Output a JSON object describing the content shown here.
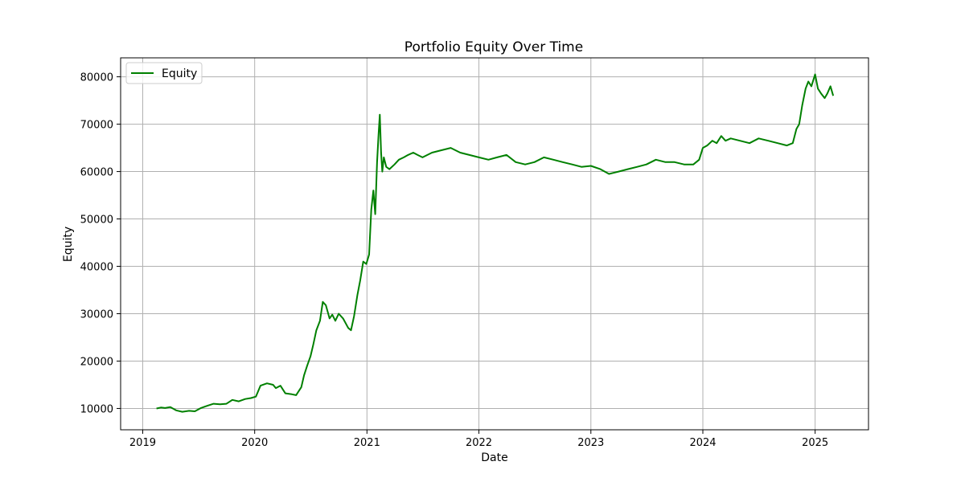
{
  "chart_data": {
    "type": "line",
    "title": "Portfolio Equity Over Time",
    "xlabel": "Date",
    "ylabel": "Equity",
    "x_ticks": [
      "2019",
      "2020",
      "2021",
      "2022",
      "2023",
      "2024",
      "2025"
    ],
    "y_ticks": [
      10000,
      20000,
      30000,
      40000,
      50000,
      60000,
      70000,
      80000
    ],
    "xlim": [
      "2018-10-21",
      "2025-06-24"
    ],
    "ylim": [
      5500,
      84000
    ],
    "grid": true,
    "legend_position": "top-left",
    "series": [
      {
        "name": "Equity",
        "color": "#008000",
        "x": [
          "2019-02-15",
          "2019-03-01",
          "2019-03-15",
          "2019-04-01",
          "2019-04-20",
          "2019-05-10",
          "2019-06-01",
          "2019-06-20",
          "2019-07-10",
          "2019-08-01",
          "2019-08-20",
          "2019-09-10",
          "2019-10-01",
          "2019-10-20",
          "2019-11-10",
          "2019-12-01",
          "2019-12-20",
          "2020-01-05",
          "2020-01-20",
          "2020-02-10",
          "2020-03-01",
          "2020-03-10",
          "2020-03-25",
          "2020-04-10",
          "2020-05-01",
          "2020-05-15",
          "2020-06-01",
          "2020-06-10",
          "2020-06-20",
          "2020-07-01",
          "2020-07-10",
          "2020-07-20",
          "2020-08-01",
          "2020-08-10",
          "2020-08-20",
          "2020-09-01",
          "2020-09-10",
          "2020-09-20",
          "2020-10-01",
          "2020-10-15",
          "2020-11-01",
          "2020-11-10",
          "2020-11-20",
          "2020-12-01",
          "2020-12-10",
          "2020-12-20",
          "2020-12-30",
          "2021-01-08",
          "2021-01-15",
          "2021-01-22",
          "2021-01-28",
          "2021-02-03",
          "2021-02-08",
          "2021-02-12",
          "2021-02-16",
          "2021-02-20",
          "2021-02-25",
          "2021-03-05",
          "2021-03-15",
          "2021-04-01",
          "2021-04-15",
          "2021-05-01",
          "2021-05-15",
          "2021-06-01",
          "2021-06-15",
          "2021-07-01",
          "2021-08-01",
          "2021-09-01",
          "2021-10-01",
          "2021-11-01",
          "2021-12-01",
          "2022-01-01",
          "2022-02-01",
          "2022-03-01",
          "2022-04-01",
          "2022-05-01",
          "2022-06-01",
          "2022-07-01",
          "2022-08-01",
          "2022-09-01",
          "2022-10-01",
          "2022-11-01",
          "2022-12-01",
          "2023-01-01",
          "2023-02-01",
          "2023-03-01",
          "2023-04-01",
          "2023-05-01",
          "2023-06-01",
          "2023-07-01",
          "2023-08-01",
          "2023-09-01",
          "2023-10-01",
          "2023-11-01",
          "2023-12-01",
          "2023-12-20",
          "2024-01-01",
          "2024-01-15",
          "2024-02-01",
          "2024-02-15",
          "2024-03-01",
          "2024-03-15",
          "2024-04-01",
          "2024-05-01",
          "2024-06-01",
          "2024-07-01",
          "2024-08-01",
          "2024-09-01",
          "2024-10-01",
          "2024-10-20",
          "2024-11-01",
          "2024-11-10",
          "2024-11-20",
          "2024-12-01",
          "2024-12-10",
          "2024-12-20",
          "2025-01-01",
          "2025-01-10",
          "2025-01-20",
          "2025-02-01",
          "2025-02-10",
          "2025-02-20",
          "2025-03-01"
        ],
        "values": [
          10000,
          10200,
          10100,
          10300,
          9600,
          9300,
          9500,
          9400,
          10100,
          10600,
          11000,
          10900,
          11000,
          11800,
          11500,
          12000,
          12200,
          12500,
          14800,
          15300,
          15000,
          14300,
          14800,
          13200,
          13000,
          12800,
          14500,
          17000,
          19000,
          21000,
          23500,
          26500,
          28500,
          32500,
          31800,
          29000,
          29800,
          28500,
          30000,
          29000,
          27000,
          26500,
          29500,
          34000,
          37000,
          41000,
          40500,
          42500,
          52000,
          56000,
          51000,
          62000,
          68000,
          72000,
          64000,
          60000,
          63000,
          61000,
          60500,
          61500,
          62500,
          63000,
          63500,
          64000,
          63500,
          63000,
          64000,
          64500,
          65000,
          64000,
          63500,
          63000,
          62500,
          63000,
          63500,
          62000,
          61500,
          62000,
          63000,
          62500,
          62000,
          61500,
          61000,
          61200,
          60500,
          59500,
          60000,
          60500,
          61000,
          61500,
          62500,
          62000,
          62000,
          61500,
          61500,
          62500,
          65000,
          65500,
          66500,
          66000,
          67500,
          66500,
          67000,
          66500,
          66000,
          67000,
          66500,
          66000,
          65500,
          66000,
          69000,
          70000,
          74000,
          77500,
          79000,
          78000,
          80500,
          77500,
          76500,
          75500,
          76500,
          78000,
          76000
        ]
      }
    ]
  }
}
